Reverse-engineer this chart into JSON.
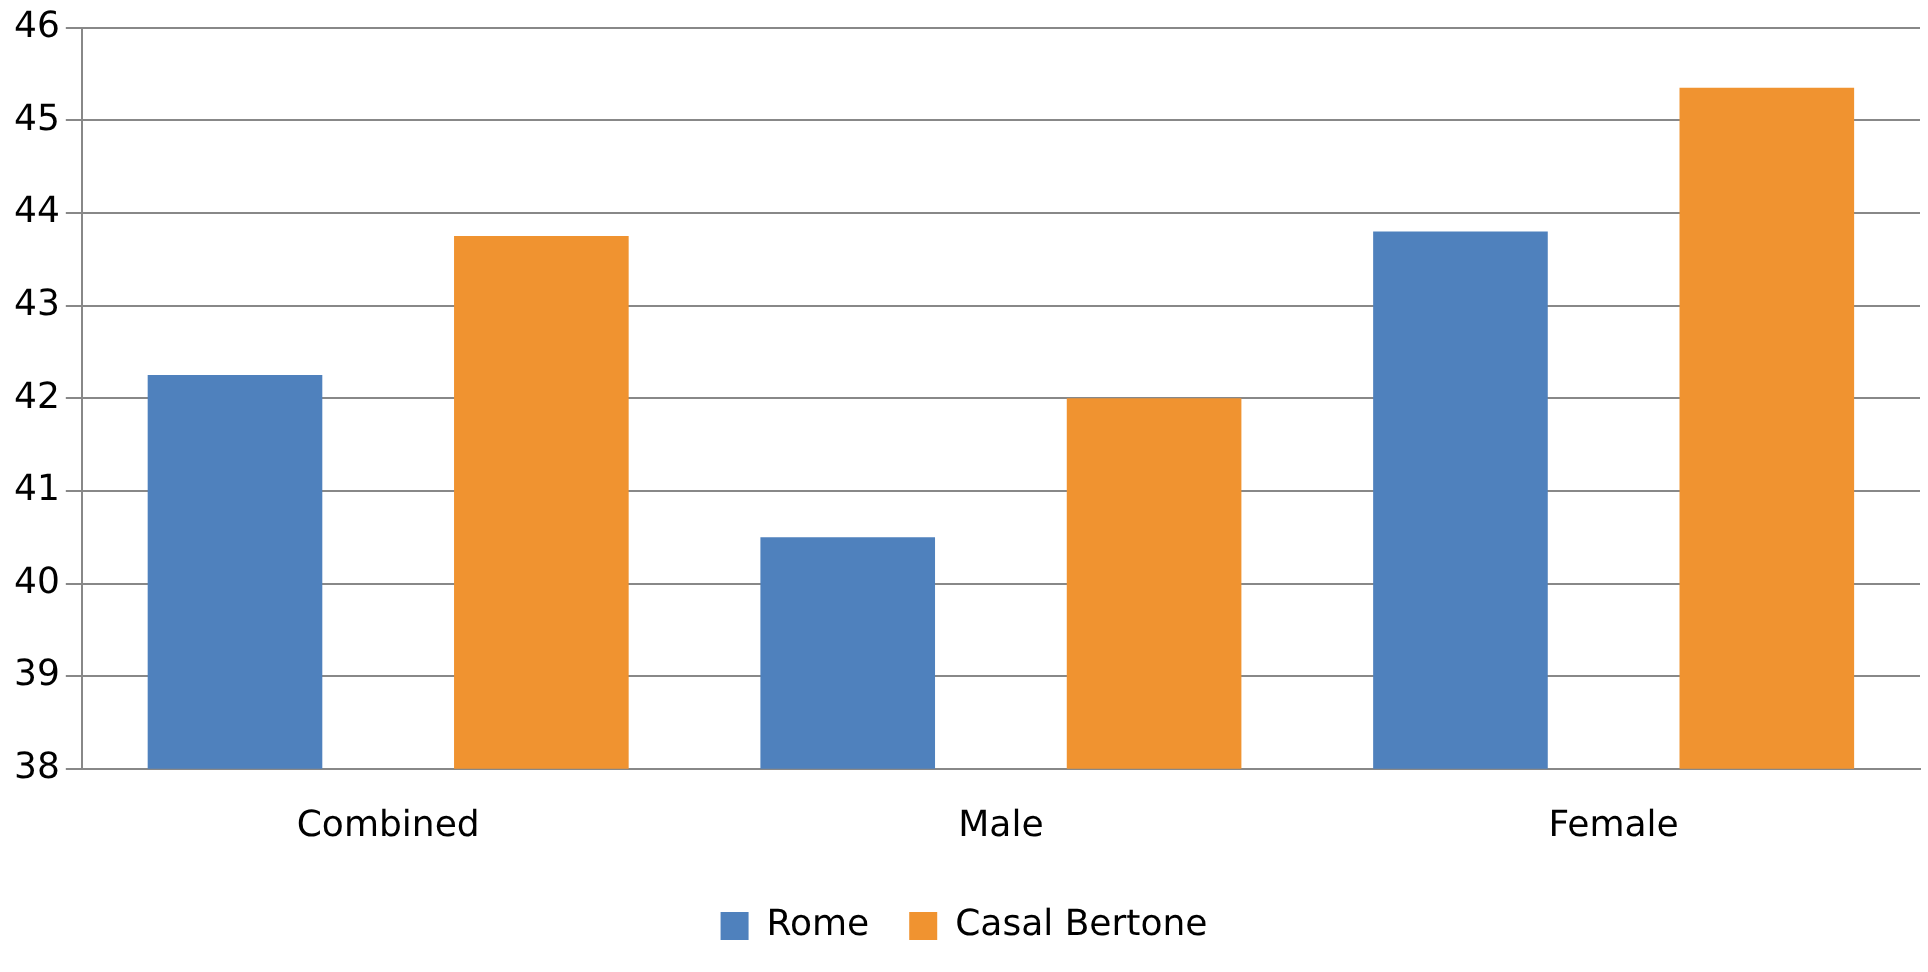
{
  "chart_data": {
    "type": "bar",
    "categories": [
      "Combined",
      "Male",
      "Female"
    ],
    "series": [
      {
        "name": "Rome",
        "color": "#4f81bd",
        "values": [
          42.25,
          40.5,
          43.8
        ]
      },
      {
        "name": "Casal Bertone",
        "color": "#f09330",
        "values": [
          43.75,
          42.0,
          45.35
        ]
      }
    ],
    "ylim": [
      38,
      46
    ],
    "yticks": [
      38,
      39,
      40,
      41,
      42,
      43,
      44,
      45,
      46
    ],
    "grid": "y",
    "legend": "bottom"
  }
}
